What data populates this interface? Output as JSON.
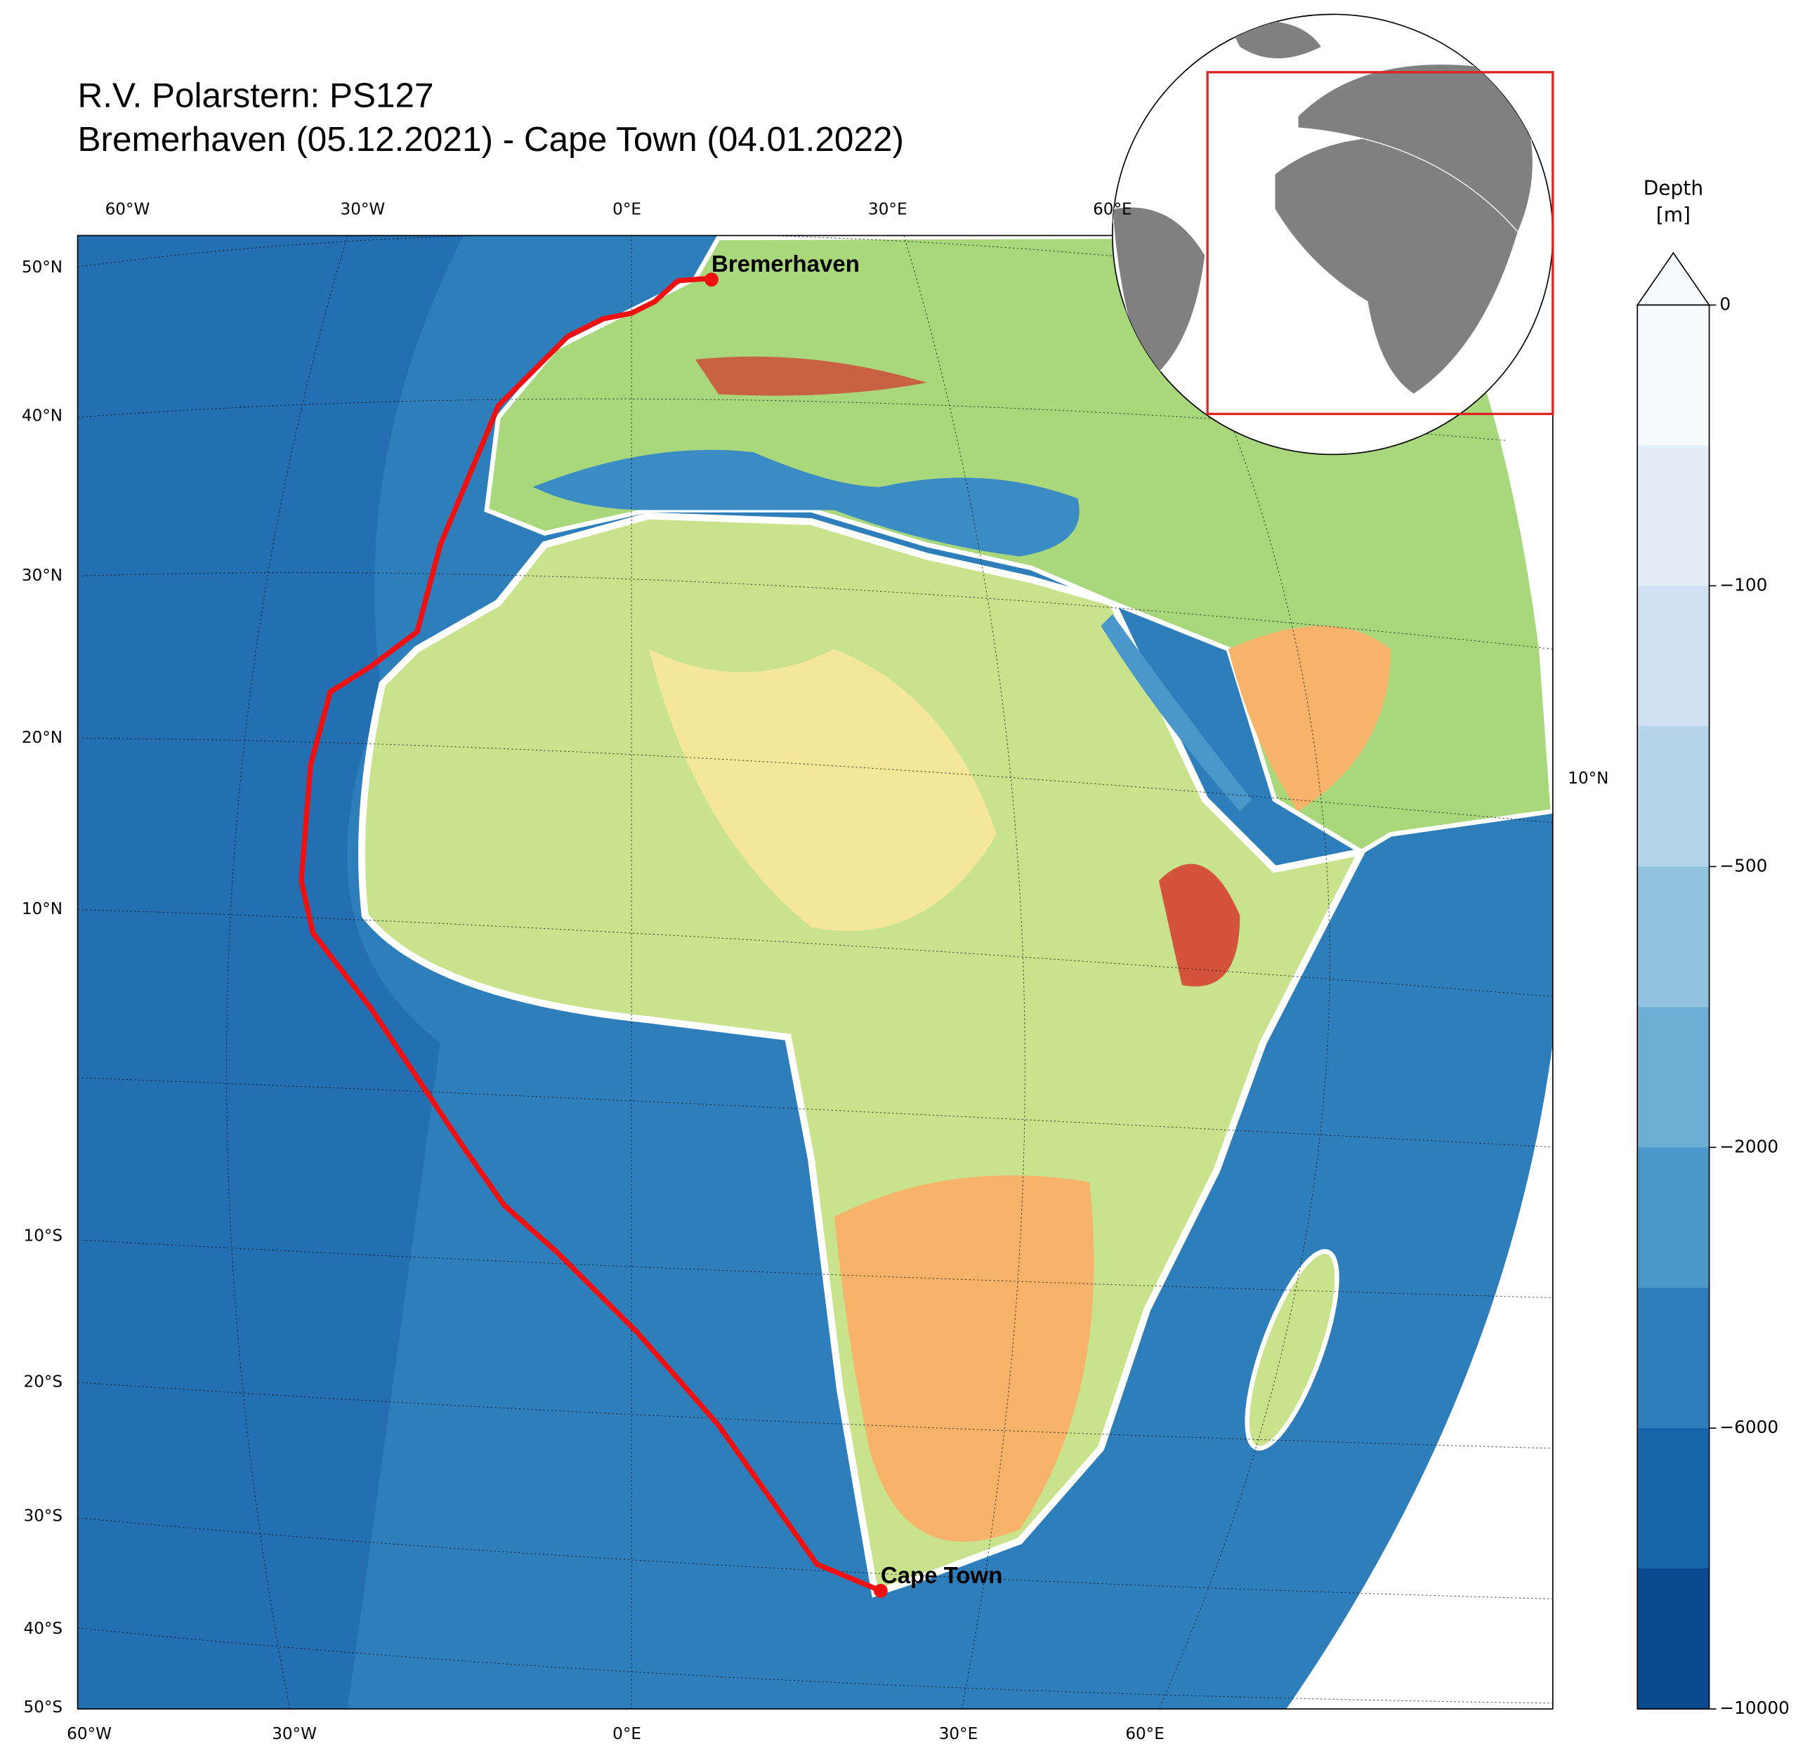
{
  "title": [
    "R.V. Polarstern: PS127",
    "Bremerhaven (05.12.2021) - Cape Town (04.01.2022)"
  ],
  "longitude_labels_top": [
    "60°W",
    "30°W",
    "0°E",
    "30°E",
    "60°E"
  ],
  "longitude_labels_bottom": [
    "60°W",
    "30°W",
    "0°E",
    "30°E",
    "60°E"
  ],
  "latitude_labels_left": [
    "50°N",
    "40°N",
    "30°N",
    "20°N",
    "10°N",
    "10°S",
    "20°S",
    "30°S",
    "40°S",
    "50°S"
  ],
  "latitude_labels_right": [
    "10°N"
  ],
  "places": [
    "Bremerhaven",
    "Cape Town"
  ],
  "colorbar": {
    "label": [
      "Depth",
      "[m]"
    ],
    "colors": [
      "#f7fbff",
      "#e3eef9",
      "#cfe1f2",
      "#b5d4e9",
      "#93c3df",
      "#6daed5",
      "#4b97c9",
      "#2f7ebc",
      "#1864aa",
      "#0a4a90"
    ],
    "extend_color": "#f7fbff",
    "ticks": [
      0,
      {
        "value": -100,
        "label": "−100"
      },
      {
        "value": -500,
        "label": "−500"
      },
      {
        "value": -2000,
        "label": "−2000"
      },
      {
        "value": -6000,
        "label": "−6000"
      },
      {
        "value": -10000,
        "label": "−10000"
      }
    ]
  }
}
